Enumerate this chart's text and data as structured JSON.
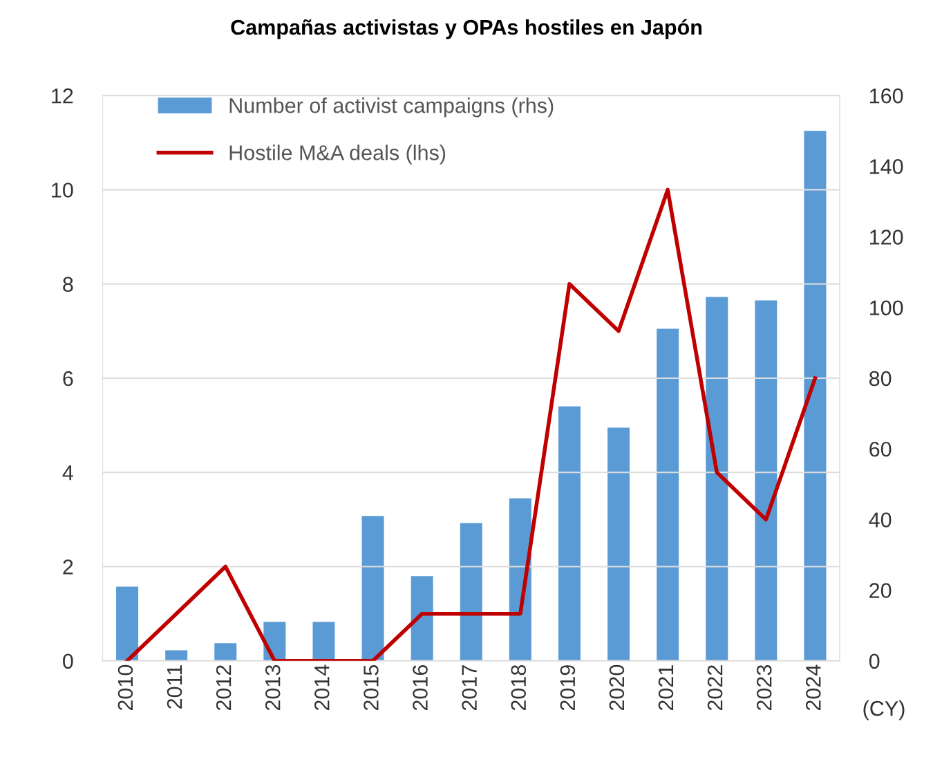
{
  "chart_data": {
    "type": "bar",
    "title": "Campañas activistas y OPAs hostiles en Japón",
    "xlabel": "(CY)",
    "categories": [
      "2010",
      "2011",
      "2012",
      "2013",
      "2014",
      "2015",
      "2016",
      "2017",
      "2018",
      "2019",
      "2020",
      "2021",
      "2022",
      "2023",
      "2024"
    ],
    "series": [
      {
        "name": "Number of activist campaigns (rhs)",
        "axis": "y2",
        "color": "#5b9bd5",
        "values": [
          21,
          3,
          5,
          11,
          11,
          41,
          24,
          39,
          46,
          72,
          66,
          94,
          103,
          102,
          150
        ]
      },
      {
        "name": "Hostile M&A deals (lhs)",
        "type": "line",
        "color": "#c00000",
        "values": [
          0,
          1,
          2,
          0,
          0,
          0,
          1,
          1,
          1,
          8,
          7,
          10,
          4,
          3,
          6
        ]
      }
    ],
    "ylim": [
      0,
      12
    ],
    "yticks": [
      0,
      2,
      4,
      6,
      8,
      10,
      12
    ],
    "y2lim": [
      0,
      160
    ],
    "y2ticks": [
      0,
      20,
      40,
      60,
      80,
      100,
      120,
      140,
      160
    ],
    "grid": "y",
    "legend": "top left",
    "marker": "none",
    "line_style": "solid"
  }
}
